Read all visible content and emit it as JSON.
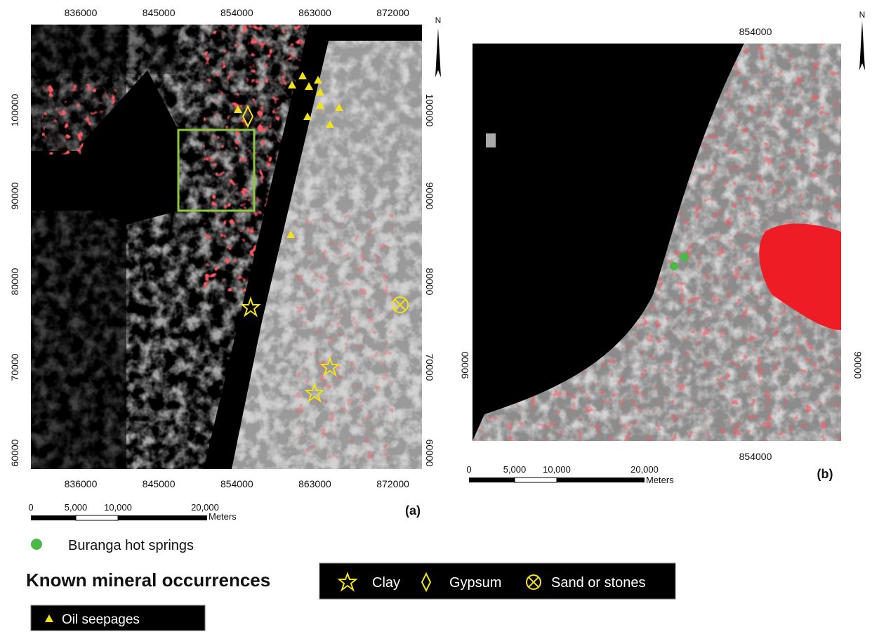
{
  "panel_a": {
    "label": "(a)",
    "north": "N",
    "x_ticks": [
      836000,
      845000,
      854000,
      863000,
      872000
    ],
    "y_ticks": [
      100000,
      90000,
      80000,
      70000,
      60000
    ],
    "scale_bar": [
      "0",
      "5,000",
      "10,000",
      "20,000"
    ],
    "scale_unit": "Meters"
  },
  "panel_b": {
    "label": "(b)",
    "north": "N",
    "x_ticks": [
      854000
    ],
    "y_ticks": [
      90000
    ],
    "scale_bar": [
      "0",
      "5,000",
      "10,000",
      "20,000"
    ],
    "scale_unit": "Meters"
  },
  "legend": {
    "hot_springs": "Buranga hot springs",
    "heading": "Known mineral occurrences",
    "clay": "Clay",
    "gypsum": "Gypsum",
    "sand": "Sand or stones",
    "oil": "Oil seepages"
  }
}
